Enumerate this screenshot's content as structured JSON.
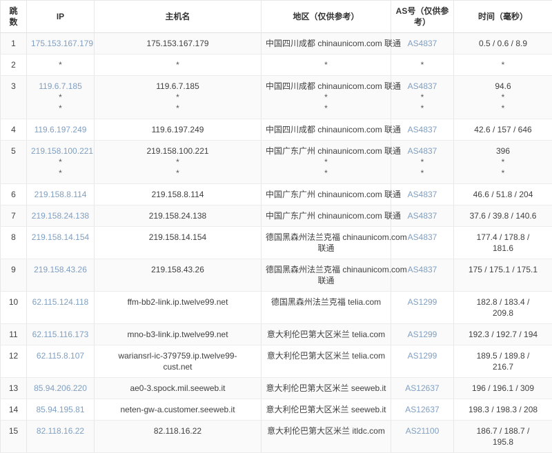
{
  "colors": {
    "link": "#7f9fc2",
    "text": "#404040",
    "header_text": "#333333",
    "border": "#e7e7e7",
    "stripe": "#fafafa"
  },
  "table": {
    "columns": [
      {
        "key": "hop",
        "label": "跳数"
      },
      {
        "key": "ip",
        "label": "IP"
      },
      {
        "key": "host",
        "label": "主机名"
      },
      {
        "key": "region",
        "label": "地区（仅供参考）"
      },
      {
        "key": "asn",
        "label": "AS号（仅供参考）"
      },
      {
        "key": "time",
        "label": "时间（毫秒）"
      }
    ],
    "rows": [
      {
        "hop": "1",
        "ip": {
          "link": "175.153.167.179"
        },
        "host": [
          "175.153.167.179"
        ],
        "region": [
          "中国四川成都 chinaunicom.com 联通"
        ],
        "asn": {
          "link": "AS4837"
        },
        "time": [
          "0.5 / 0.6 / 8.9"
        ]
      },
      {
        "hop": "2",
        "ip": {
          "text": "*"
        },
        "host": [
          "*"
        ],
        "region": [
          "*"
        ],
        "asn": {
          "text": "*"
        },
        "time": [
          "*"
        ]
      },
      {
        "hop": "3",
        "ip": {
          "link": "119.6.7.185",
          "extra": [
            "*",
            "*"
          ]
        },
        "host": [
          "119.6.7.185",
          "*",
          "*"
        ],
        "region": [
          "中国四川成都 chinaunicom.com 联通",
          "*",
          "*"
        ],
        "asn": {
          "link": "AS4837",
          "extra": [
            "*",
            "*"
          ]
        },
        "time": [
          "94.6",
          "*",
          "*"
        ]
      },
      {
        "hop": "4",
        "ip": {
          "link": "119.6.197.249"
        },
        "host": [
          "119.6.197.249"
        ],
        "region": [
          "中国四川成都 chinaunicom.com 联通"
        ],
        "asn": {
          "link": "AS4837"
        },
        "time": [
          "42.6 / 157 / 646"
        ]
      },
      {
        "hop": "5",
        "ip": {
          "link": "219.158.100.221",
          "extra": [
            "*",
            "*"
          ]
        },
        "host": [
          "219.158.100.221",
          "*",
          "*"
        ],
        "region": [
          "中国广东广州 chinaunicom.com 联通",
          "*",
          "*"
        ],
        "asn": {
          "link": "AS4837",
          "extra": [
            "*",
            "*"
          ]
        },
        "time": [
          "396",
          "*",
          "*"
        ]
      },
      {
        "hop": "6",
        "ip": {
          "link": "219.158.8.114"
        },
        "host": [
          "219.158.8.114"
        ],
        "region": [
          "中国广东广州 chinaunicom.com 联通"
        ],
        "asn": {
          "link": "AS4837"
        },
        "time": [
          "46.6 / 51.8 / 204"
        ]
      },
      {
        "hop": "7",
        "ip": {
          "link": "219.158.24.138"
        },
        "host": [
          "219.158.24.138"
        ],
        "region": [
          "中国广东广州 chinaunicom.com 联通"
        ],
        "asn": {
          "link": "AS4837"
        },
        "time": [
          "37.6 / 39.8 / 140.6"
        ]
      },
      {
        "hop": "8",
        "ip": {
          "link": "219.158.14.154"
        },
        "host": [
          "219.158.14.154"
        ],
        "region": [
          "德国黑森州法兰克福 chinaunicom.com",
          "联通"
        ],
        "asn": {
          "link": "AS4837"
        },
        "time": [
          "177.4 / 178.8 /",
          "181.6"
        ]
      },
      {
        "hop": "9",
        "ip": {
          "link": "219.158.43.26"
        },
        "host": [
          "219.158.43.26"
        ],
        "region": [
          "德国黑森州法兰克福 chinaunicom.com",
          "联通"
        ],
        "asn": {
          "link": "AS4837"
        },
        "time": [
          "175 / 175.1 / 175.1"
        ]
      },
      {
        "hop": "10",
        "ip": {
          "link": "62.115.124.118"
        },
        "host": [
          "ffm-bb2-link.ip.twelve99.net"
        ],
        "region": [
          "德国黑森州法兰克福 telia.com"
        ],
        "asn": {
          "link": "AS1299"
        },
        "time": [
          "182.8 / 183.4 /",
          "209.8"
        ]
      },
      {
        "hop": "11",
        "ip": {
          "link": "62.115.116.173"
        },
        "host": [
          "mno-b3-link.ip.twelve99.net"
        ],
        "region": [
          "意大利伦巴第大区米兰 telia.com"
        ],
        "asn": {
          "link": "AS1299"
        },
        "time": [
          "192.3 / 192.7 / 194"
        ]
      },
      {
        "hop": "12",
        "ip": {
          "link": "62.115.8.107"
        },
        "host": [
          "wariansrl-ic-379759.ip.twelve99-",
          "cust.net"
        ],
        "region": [
          "意大利伦巴第大区米兰 telia.com"
        ],
        "asn": {
          "link": "AS1299"
        },
        "time": [
          "189.5 / 189.8 /",
          "216.7"
        ]
      },
      {
        "hop": "13",
        "ip": {
          "link": "85.94.206.220"
        },
        "host": [
          "ae0-3.spock.mil.seeweb.it"
        ],
        "region": [
          "意大利伦巴第大区米兰 seeweb.it"
        ],
        "asn": {
          "link": "AS12637"
        },
        "time": [
          "196 / 196.1 / 309"
        ]
      },
      {
        "hop": "14",
        "ip": {
          "link": "85.94.195.81"
        },
        "host": [
          "neten-gw-a.customer.seeweb.it"
        ],
        "region": [
          "意大利伦巴第大区米兰 seeweb.it"
        ],
        "asn": {
          "link": "AS12637"
        },
        "time": [
          "198.3 / 198.3 / 208"
        ]
      },
      {
        "hop": "15",
        "ip": {
          "link": "82.118.16.22"
        },
        "host": [
          "82.118.16.22"
        ],
        "region": [
          "意大利伦巴第大区米兰 itldc.com"
        ],
        "asn": {
          "link": "AS21100"
        },
        "time": [
          "186.7 / 188.7 /",
          "195.8"
        ]
      }
    ]
  }
}
